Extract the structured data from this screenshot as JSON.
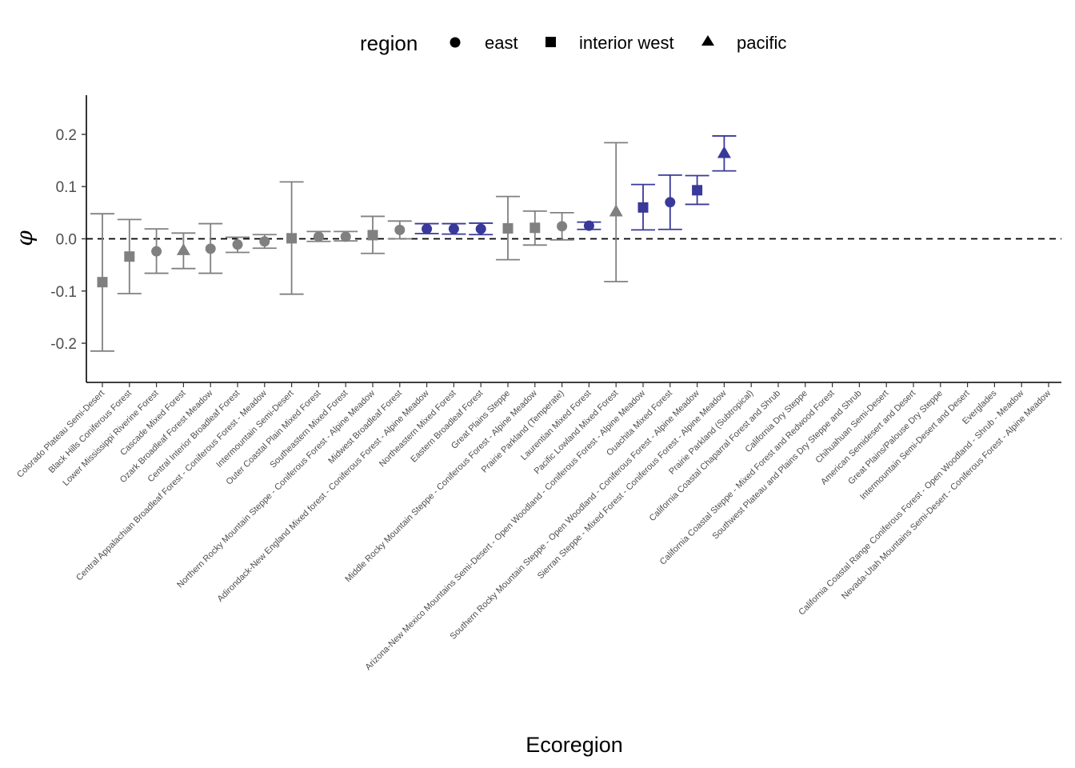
{
  "chart_data": {
    "type": "scatter",
    "subtype": "point-with-errorbars",
    "title": "",
    "xlabel": "Ecoregion",
    "ylabel": "φ",
    "ylim": [
      -0.275,
      0.275
    ],
    "yticks": [
      -0.2,
      -0.1,
      0.0,
      0.1,
      0.2
    ],
    "ytick_labels": [
      "-0.2",
      "-0.1",
      "0.0",
      "0.1",
      "0.2"
    ],
    "reference_line": {
      "y": 0.0,
      "style": "dashed"
    },
    "grid": false,
    "legend": {
      "title": "region",
      "position": "top",
      "entries": [
        {
          "label": "east",
          "shape": "circle"
        },
        {
          "label": "interior west",
          "shape": "square"
        },
        {
          "label": "pacific",
          "shape": "triangle"
        }
      ]
    },
    "colors": {
      "significant": "#39399a",
      "not_significant": "#808080"
    },
    "categories": [
      "Colorado Plateau Semi-Desert",
      "Black Hills Coniferous Forest",
      "Lower Mississippi Riverine Forest",
      "Cascade Mixed Forest",
      "Ozark Broadleaf Forest Meadow",
      "Central Interior Broadleaf Forest",
      "Central Appalachian Broadleaf Forest - Coniferous Forest - Meadow",
      "Intermountain Semi-Desert",
      "Outer Coastal Plain Mixed Forest",
      "Southeastern Mixed Forest",
      "Northern Rocky Mountain Steppe - Coniferous Forest - Alpine Meadow",
      "Midwest Broadleaf Forest",
      "Adirondack-New England Mixed forest - Coniferous Forest - Alpine Meadow",
      "Northeastern Mixed Forest",
      "Eastern Broadleaf Forest",
      "Great Plains Steppe",
      "Middle Rocky Mountain Steppe - Coniferous Forest - Alpine Meadow",
      "Prairie Parkland (Temperate)",
      "Laurentian Mixed Forest",
      "Pacific Lowland Mixed Forest",
      "Arizona-New Mexico Mountains Semi-Desert - Open Woodland - Coniferous Forest - Alpine Meadow",
      "Ouachita Mixed Forest",
      "Southern Rocky Mountain Steppe - Open Woodland - Coniferous Forest - Alpine Meadow",
      "Sierran Steppe - Mixed Forest - Coniferous Forest - Alpine Meadow",
      "Prairie Parkland (Subtropical)",
      "California Coastal Chaparral Forest and Shrub",
      "California Dry Steppe",
      "California Coastal Steppe - Mixed Forest and Redwood Forest",
      "Southwest Plateau and Plains Dry Steppe and Shrub",
      "Chihuahuan Semi-Desert",
      "American Semidesert and Desert",
      "Great Plains/Palouse Dry Steppe",
      "Intermountain Semi-Desert and Desert",
      "Everglades",
      "California Coastal Range Coniferous Forest - Open Woodland - Shrub - Meadow",
      "Nevada-Utah Mountains Semi-Desert - Coniferous Forest - Alpine Meadow"
    ],
    "points": [
      {
        "region": "interior west",
        "y": -0.083,
        "lo": -0.215,
        "hi": 0.048,
        "significant": false
      },
      {
        "region": "interior west",
        "y": -0.034,
        "lo": -0.105,
        "hi": 0.037,
        "significant": false
      },
      {
        "region": "east",
        "y": -0.024,
        "lo": -0.066,
        "hi": 0.019,
        "significant": false
      },
      {
        "region": "pacific",
        "y": -0.022,
        "lo": -0.057,
        "hi": 0.011,
        "significant": false
      },
      {
        "region": "east",
        "y": -0.019,
        "lo": -0.066,
        "hi": 0.029,
        "significant": false
      },
      {
        "region": "east",
        "y": -0.011,
        "lo": -0.026,
        "hi": 0.003,
        "significant": false
      },
      {
        "region": "east",
        "y": -0.005,
        "lo": -0.018,
        "hi": 0.008,
        "significant": false
      },
      {
        "region": "interior west",
        "y": 0.001,
        "lo": -0.106,
        "hi": 0.109,
        "significant": false
      },
      {
        "region": "east",
        "y": 0.004,
        "lo": -0.005,
        "hi": 0.014,
        "significant": false
      },
      {
        "region": "east",
        "y": 0.004,
        "lo": -0.004,
        "hi": 0.014,
        "significant": false
      },
      {
        "region": "interior west",
        "y": 0.007,
        "lo": -0.028,
        "hi": 0.043,
        "significant": false
      },
      {
        "region": "east",
        "y": 0.017,
        "lo": 0.0,
        "hi": 0.034,
        "significant": false
      },
      {
        "region": "east",
        "y": 0.019,
        "lo": 0.01,
        "hi": 0.029,
        "significant": true
      },
      {
        "region": "east",
        "y": 0.019,
        "lo": 0.009,
        "hi": 0.029,
        "significant": true
      },
      {
        "region": "east",
        "y": 0.019,
        "lo": 0.008,
        "hi": 0.03,
        "significant": true
      },
      {
        "region": "interior west",
        "y": 0.02,
        "lo": -0.04,
        "hi": 0.081,
        "significant": false
      },
      {
        "region": "interior west",
        "y": 0.021,
        "lo": -0.012,
        "hi": 0.053,
        "significant": false
      },
      {
        "region": "east",
        "y": 0.024,
        "lo": -0.002,
        "hi": 0.05,
        "significant": false
      },
      {
        "region": "east",
        "y": 0.025,
        "lo": 0.018,
        "hi": 0.032,
        "significant": true
      },
      {
        "region": "pacific",
        "y": 0.052,
        "lo": -0.082,
        "hi": 0.184,
        "significant": false
      },
      {
        "region": "interior west",
        "y": 0.06,
        "lo": 0.017,
        "hi": 0.104,
        "significant": true
      },
      {
        "region": "east",
        "y": 0.07,
        "lo": 0.018,
        "hi": 0.122,
        "significant": true
      },
      {
        "region": "interior west",
        "y": 0.093,
        "lo": 0.066,
        "hi": 0.121,
        "significant": true
      },
      {
        "region": "pacific",
        "y": 0.164,
        "lo": 0.13,
        "hi": 0.197,
        "significant": true
      }
    ]
  }
}
